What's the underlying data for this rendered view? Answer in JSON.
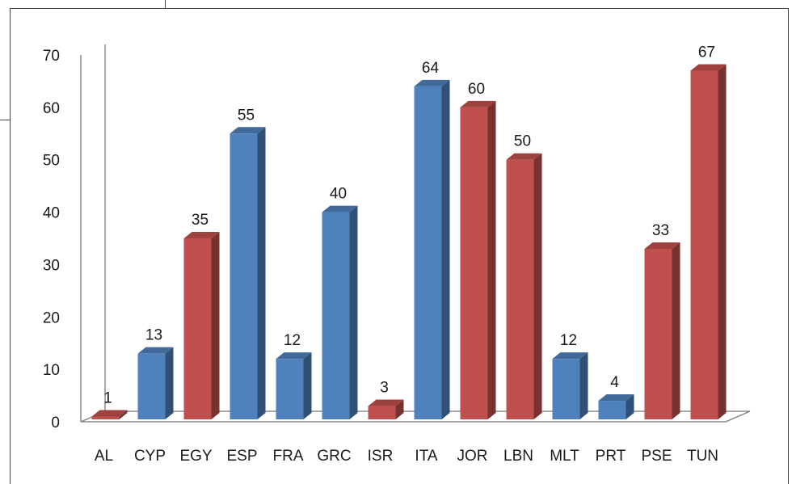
{
  "chart_data": {
    "type": "bar",
    "title": "",
    "xlabel": "",
    "ylabel": "",
    "ylim": [
      0,
      70
    ],
    "yticks": [
      0,
      10,
      20,
      30,
      40,
      50,
      60,
      70
    ],
    "grid": false,
    "legend": false,
    "style": "3d-column",
    "categories": [
      "AL",
      "CYP",
      "EGY",
      "ESP",
      "FRA",
      "GRC",
      "ISR",
      "ITA",
      "JOR",
      "LBN",
      "MLT",
      "PRT",
      "PSE",
      "TUN"
    ],
    "values": [
      1,
      13,
      35,
      55,
      12,
      40,
      3,
      64,
      60,
      50,
      12,
      4,
      33,
      67
    ],
    "data_labels": [
      "1",
      "13",
      "35",
      "55",
      "12",
      "40",
      "3",
      "64",
      "60",
      "50",
      "12",
      "4",
      "33",
      "67"
    ],
    "bar_colors": [
      "#c0504d",
      "#4f81bd",
      "#c0504d",
      "#4f81bd",
      "#4f81bd",
      "#4f81bd",
      "#c0504d",
      "#4f81bd",
      "#c0504d",
      "#c0504d",
      "#4f81bd",
      "#4f81bd",
      "#c0504d",
      "#c0504d"
    ]
  }
}
